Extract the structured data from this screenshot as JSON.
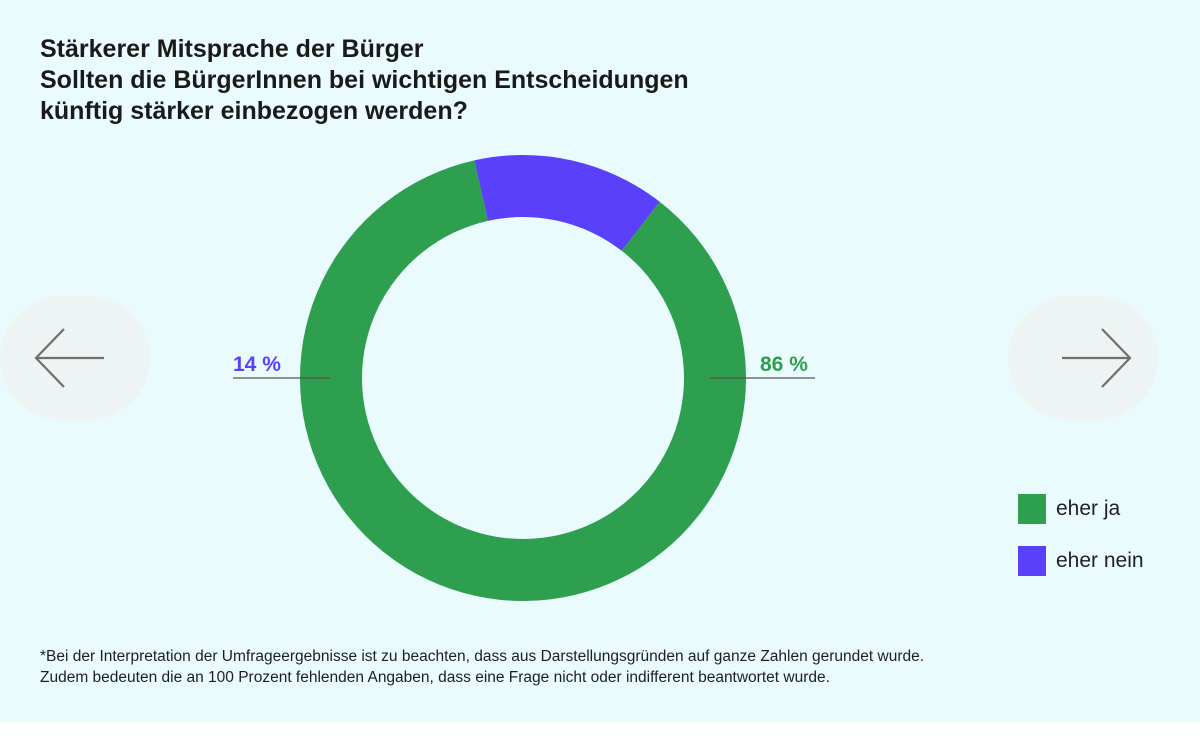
{
  "title_lines": [
    "Stärkerer Mitsprache der Bürger",
    "Sollten die BürgerInnen bei wichtigen Entscheidungen",
    "künftig stärker einbezogen werden?"
  ],
  "nav": {
    "prev_icon": "arrow-left-icon",
    "next_icon": "arrow-right-icon"
  },
  "colors": {
    "yes": "#2e9e4f",
    "no": "#5a3ffb",
    "background": "#e9fbfd"
  },
  "chart_data": {
    "type": "pie",
    "variant": "donut",
    "categories": [
      "eher ja",
      "eher nein"
    ],
    "values": [
      86,
      14
    ],
    "value_labels": [
      "86 %",
      "14 %"
    ],
    "colors": [
      "#2e9e4f",
      "#5a3ffb"
    ],
    "legend_position": "bottom-right"
  },
  "legend": [
    {
      "label": "eher ja",
      "color": "#2e9e4f"
    },
    {
      "label": "eher nein",
      "color": "#5a3ffb"
    }
  ],
  "footnote_lines": [
    "*Bei der Interpretation der Umfrageergebnisse ist zu beachten, dass aus Darstellungsgründen auf ganze Zahlen gerundet wurde.",
    "Zudem bedeuten die an 100 Prozent fehlenden Angaben, dass eine Frage nicht oder indifferent beantwortet wurde."
  ]
}
